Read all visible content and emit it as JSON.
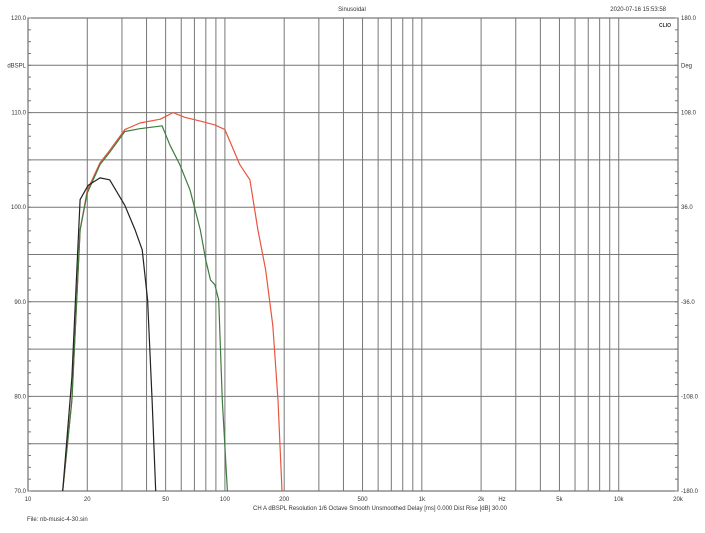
{
  "header": {
    "title": "Sinusoidal",
    "timestamp": "2020-07-16 15:53:58",
    "logo": "CLIO"
  },
  "footer": {
    "settings": "CH A   dBSPL   Resolution 1/6 Octave   Smooth Unsmoothed   Delay [ms] 0.000   Dist Rise [dB] 30.00",
    "file": "File: nb-music-4-30.sin"
  },
  "chart_data": {
    "type": "line",
    "title": "Sinusoidal",
    "xlabel": "Hz",
    "ylabel": "dBSPL",
    "y2label": "Deg",
    "xscale": "log",
    "xlim": [
      10,
      20000
    ],
    "ylim": [
      70,
      120
    ],
    "y2lim": [
      -180,
      180
    ],
    "grid": true,
    "xticks": [
      {
        "v": 10,
        "l": "10"
      },
      {
        "v": 20,
        "l": "20"
      },
      {
        "v": 50,
        "l": "50"
      },
      {
        "v": 100,
        "l": "100"
      },
      {
        "v": 200,
        "l": "200"
      },
      {
        "v": 500,
        "l": "500"
      },
      {
        "v": 1000,
        "l": "1k"
      },
      {
        "v": 2000,
        "l": "2k"
      },
      {
        "v": 5000,
        "l": "5k"
      },
      {
        "v": 10000,
        "l": "10k"
      },
      {
        "v": 20000,
        "l": "20k"
      }
    ],
    "yticks": [
      {
        "v": 120,
        "l": "120.0"
      },
      {
        "v": 115,
        "l": "dBSPL"
      },
      {
        "v": 110,
        "l": "110.0"
      },
      {
        "v": 100,
        "l": "100.0"
      },
      {
        "v": 90,
        "l": "90.0"
      },
      {
        "v": 80,
        "l": "80.0"
      },
      {
        "v": 70,
        "l": "70.0"
      }
    ],
    "y2ticks": [
      {
        "v": 120,
        "l": "180.0"
      },
      {
        "v": 115,
        "l": "Deg"
      },
      {
        "v": 110,
        "l": "108.0"
      },
      {
        "v": 100,
        "l": "36.0"
      },
      {
        "v": 90,
        "l": "-36.0"
      },
      {
        "v": 80,
        "l": "-108.0"
      },
      {
        "v": 70,
        "l": "-180.0"
      }
    ],
    "series": [
      {
        "color": "#e8553f",
        "points": [
          [
            15,
            70
          ],
          [
            16.7,
            79.6
          ],
          [
            18.4,
            97.6
          ],
          [
            20,
            101.8
          ],
          [
            23.2,
            104.7
          ],
          [
            26,
            106
          ],
          [
            31,
            108.2
          ],
          [
            37,
            108.9
          ],
          [
            47,
            109.3
          ],
          [
            54.5,
            110
          ],
          [
            62.5,
            109.5
          ],
          [
            75,
            109.1
          ],
          [
            89,
            108.7
          ],
          [
            100,
            108.2
          ],
          [
            119,
            104.5
          ],
          [
            134,
            102.9
          ],
          [
            147,
            97.6
          ],
          [
            161,
            93.4
          ],
          [
            175,
            87.5
          ],
          [
            186,
            79.6
          ],
          [
            195,
            70
          ]
        ]
      },
      {
        "color": "#3f7a3f",
        "points": [
          [
            15,
            70
          ],
          [
            16.7,
            79.6
          ],
          [
            18.4,
            97.6
          ],
          [
            20,
            101.5
          ],
          [
            23.2,
            104.5
          ],
          [
            26,
            105.8
          ],
          [
            31,
            108
          ],
          [
            37,
            108.3
          ],
          [
            44,
            108.5
          ],
          [
            48,
            108.6
          ],
          [
            52.5,
            106.6
          ],
          [
            59,
            104.5
          ],
          [
            66.6,
            101.8
          ],
          [
            75,
            97.6
          ],
          [
            80,
            94.4
          ],
          [
            84.5,
            92.3
          ],
          [
            89,
            91.8
          ],
          [
            93,
            90.2
          ],
          [
            97,
            79.6
          ],
          [
            103,
            70
          ]
        ]
      },
      {
        "color": "#222222",
        "points": [
          [
            15,
            70
          ],
          [
            16.7,
            82
          ],
          [
            18.4,
            100.8
          ],
          [
            20.2,
            102.3
          ],
          [
            23.2,
            103.1
          ],
          [
            26,
            102.9
          ],
          [
            31,
            100.2
          ],
          [
            35,
            97.6
          ],
          [
            38,
            95.5
          ],
          [
            40.5,
            90.2
          ],
          [
            42.7,
            79.6
          ],
          [
            44.5,
            70
          ]
        ]
      }
    ]
  }
}
